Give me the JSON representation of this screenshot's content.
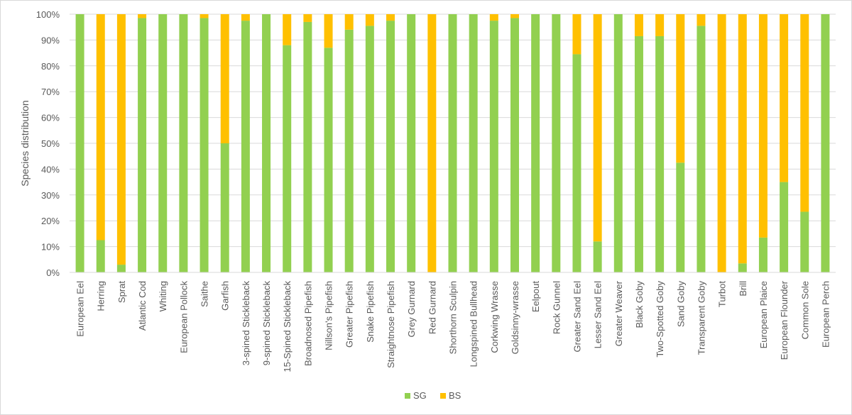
{
  "chart_data": {
    "type": "bar",
    "stacked": true,
    "normalized_percent": true,
    "title": "",
    "xlabel": "",
    "ylabel": "Species distribution",
    "ylim": [
      0,
      100
    ],
    "yticks": [
      "0%",
      "10%",
      "20%",
      "30%",
      "40%",
      "50%",
      "60%",
      "70%",
      "80%",
      "90%",
      "100%"
    ],
    "legend_position": "bottom-center",
    "categories": [
      "European Eel",
      "Herring",
      "Sprat",
      "Atlantic Cod",
      "Whiting",
      "European Pollock",
      "Saithe",
      "Garfish",
      "3-spined Stickleback",
      "9-spined Stickleback",
      "15-Spined Stickleback",
      "Broadnosed Pipefish",
      "Nillson's Pipefish",
      "Greater Pipefish",
      "Snake Pipefish",
      "Straightnose Pipefish",
      "Grey Gurnard",
      "Red Gurnard",
      "Shorthorn Sculpin",
      "Longspined Bullhead",
      "Corkwing Wrasse",
      "Goldsinny-wrasse",
      "Eelpout",
      "Rock Gunnel",
      "Greater Sand Eel",
      "Lesser Sand Eel",
      "Greater Weaver",
      "Black Goby",
      "Two-Spotted Goby",
      "Sand Goby",
      "Transparent Goby",
      "Turbot",
      "Brill",
      "European Plaice",
      "European Flounder",
      "Common Sole",
      "European Perch"
    ],
    "series": [
      {
        "name": "SG",
        "color": "#92d050",
        "values": [
          100,
          12.5,
          3,
          98.5,
          100,
          100,
          98.5,
          50,
          97.5,
          100,
          88,
          97,
          87,
          94,
          95.5,
          97.5,
          100,
          0,
          100,
          100,
          97.5,
          98.5,
          100,
          100,
          84.5,
          12,
          100,
          91.5,
          91.5,
          42.5,
          95.5,
          0,
          3.5,
          13.5,
          35,
          23.5,
          100
        ]
      },
      {
        "name": "BS",
        "color": "#ffc000",
        "values": [
          0,
          87.5,
          97,
          1.5,
          0,
          0,
          1.5,
          50,
          2.5,
          0,
          12,
          3,
          13,
          6,
          4.5,
          2.5,
          0,
          100,
          0,
          0,
          2.5,
          1.5,
          0,
          0,
          15.5,
          88,
          0,
          8.5,
          8.5,
          57.5,
          4.5,
          100,
          96.5,
          86.5,
          65,
          76.5,
          0
        ]
      }
    ]
  }
}
